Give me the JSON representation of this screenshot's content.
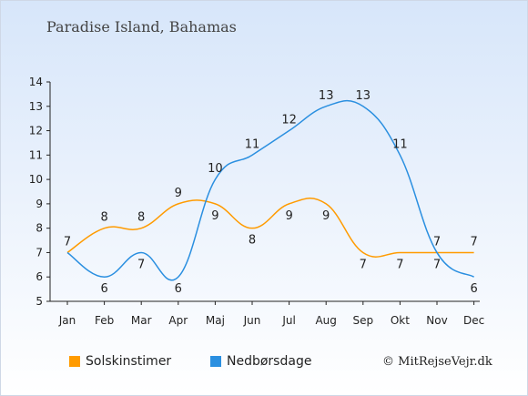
{
  "chart_data": {
    "type": "line",
    "title": "Paradise Island, Bahamas",
    "categories": [
      "Jan",
      "Feb",
      "Mar",
      "Apr",
      "Maj",
      "Jun",
      "Jul",
      "Aug",
      "Sep",
      "Okt",
      "Nov",
      "Dec"
    ],
    "ylim": [
      5,
      14
    ],
    "yticks": [
      5,
      6,
      7,
      8,
      9,
      10,
      11,
      12,
      13,
      14
    ],
    "grid": false,
    "legend_position": "bottom",
    "series": [
      {
        "name": "Solskinstimer",
        "color": "#ff9b00",
        "values": [
          7,
          8,
          8,
          9,
          9,
          8,
          9,
          9,
          7,
          7,
          7,
          7
        ]
      },
      {
        "name": "Nedbørsdage",
        "color": "#2a8fe0",
        "values": [
          7,
          6,
          7,
          6,
          10,
          11,
          12,
          13,
          13,
          11,
          7,
          6
        ]
      }
    ]
  },
  "footer": {
    "copyright": "© MitRejseVejr.dk"
  }
}
